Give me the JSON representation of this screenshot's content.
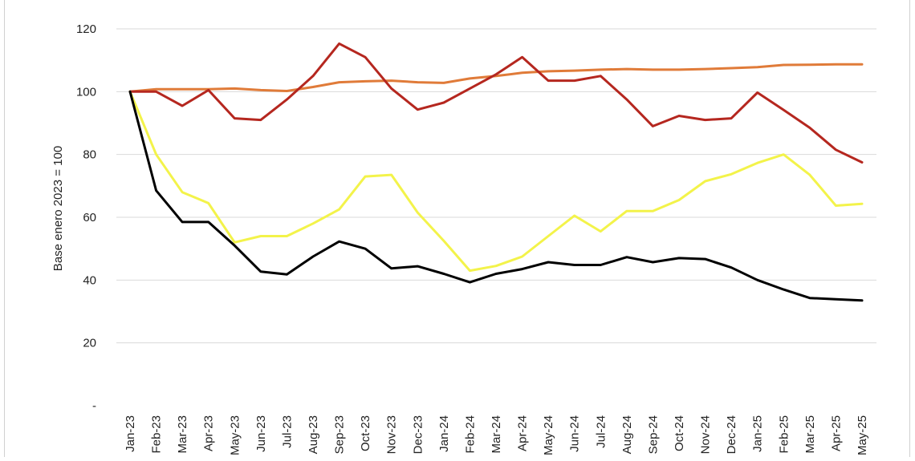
{
  "chart_data": {
    "type": "line",
    "ylabel": "Base enero 2023 = 100",
    "ylim": [
      0,
      120
    ],
    "yticks": [
      0,
      20,
      40,
      60,
      80,
      100,
      120
    ],
    "ytick_labels": [
      "-",
      "20",
      "40",
      "60",
      "80",
      "100",
      "120"
    ],
    "grid": true,
    "legend": "none",
    "categories": [
      "Jan-23",
      "Feb-23",
      "Mar-23",
      "Apr-23",
      "May-23",
      "Jun-23",
      "Jul-23",
      "Aug-23",
      "Sep-23",
      "Oct-23",
      "Nov-23",
      "Dec-23",
      "Jan-24",
      "Feb-24",
      "Mar-24",
      "Apr-24",
      "May-24",
      "Jun-24",
      "Jul-24",
      "Aug-24",
      "Sep-24",
      "Oct-24",
      "Nov-24",
      "Dec-24",
      "Jan-25",
      "Feb-25",
      "Mar-25",
      "Apr-25",
      "May-25"
    ],
    "series": [
      {
        "color": "#e07b39",
        "values": [
          100,
          100.8,
          100.8,
          100.8,
          101,
          100.5,
          100.2,
          101.5,
          103,
          103.3,
          103.5,
          103,
          102.8,
          104.2,
          105,
          106,
          106.5,
          106.7,
          107,
          107.2,
          107,
          107,
          107.2,
          107.5,
          107.8,
          108.5,
          108.6,
          108.7,
          108.7
        ]
      },
      {
        "color": "#b5271f",
        "values": [
          100,
          100,
          95.5,
          100.5,
          91.5,
          91,
          97.5,
          105,
          115.3,
          111,
          101,
          94.3,
          96.5,
          101,
          105.5,
          111,
          103.5,
          103.5,
          105,
          97.5,
          89,
          92.3,
          91,
          91.5,
          99.7,
          94.2,
          88.5,
          81.5,
          77.5
        ]
      },
      {
        "color": "#f3f34a",
        "values": [
          100,
          80,
          68,
          64.5,
          52,
          54,
          54,
          58,
          62.5,
          73,
          73.5,
          61.5,
          52.5,
          43,
          44.5,
          47.5,
          54,
          60.5,
          55.5,
          62,
          62,
          65.5,
          71.5,
          73.7,
          77.3,
          80,
          73.5,
          63.7,
          64.3
        ]
      },
      {
        "color": "#000000",
        "values": [
          100,
          68.5,
          58.5,
          58.5,
          51,
          42.7,
          41.8,
          47.5,
          52.3,
          50,
          43.7,
          44.4,
          42,
          39.3,
          42,
          43.5,
          45.7,
          44.8,
          44.8,
          47.3,
          45.7,
          47,
          46.7,
          44,
          40,
          37,
          34.3,
          33.9,
          33.5
        ]
      }
    ]
  }
}
